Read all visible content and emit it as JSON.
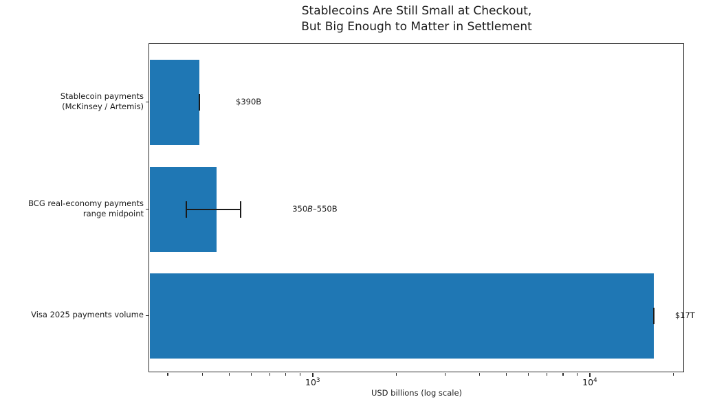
{
  "figure": {
    "title_line1": "Stablecoins Are Still Small at Checkout,",
    "title_line2": "But Big Enough to Matter in Settlement"
  },
  "chart_data": {
    "type": "bar",
    "orientation": "horizontal",
    "title": "Stablecoins Are Still Small at Checkout,\nBut Big Enough to Matter in Settlement",
    "xlabel": "USD billions (log scale)",
    "ylabel": "",
    "x_scale": "log",
    "xlim": [
      257,
      21875
    ],
    "grid": false,
    "legend": null,
    "bar_color": "#1f77b4",
    "error_color": "#1a1a1a",
    "categories": [
      {
        "label_lines": [
          "Stablecoin payments",
          "(McKinsey / Artemis)"
        ],
        "value": 390,
        "error_low": 390,
        "error_high": 390,
        "annotation": {
          "parts": [
            {
              "text": "$390B",
              "italic": false
            }
          ]
        }
      },
      {
        "label_lines": [
          "BCG real-economy payments",
          "range midpoint"
        ],
        "value": 450,
        "error_low": 350,
        "error_high": 550,
        "annotation": {
          "parts": [
            {
              "text": "350",
              "italic": false
            },
            {
              "text": "B",
              "italic": true
            },
            {
              "text": "–550B",
              "italic": false
            }
          ]
        }
      },
      {
        "label_lines": [
          "Visa 2025 payments volume"
        ],
        "value": 17000,
        "error_low": 17000,
        "error_high": 17000,
        "annotation": {
          "parts": [
            {
              "text": "$17T",
              "italic": false
            }
          ]
        }
      }
    ],
    "x_ticks_major": [
      {
        "base": "10",
        "exp": "3",
        "value": 1000
      },
      {
        "base": "10",
        "exp": "4",
        "value": 10000
      }
    ],
    "x_ticks_minor": [
      300,
      400,
      500,
      600,
      700,
      800,
      900,
      2000,
      3000,
      4000,
      5000,
      6000,
      7000,
      8000,
      9000,
      20000
    ]
  }
}
